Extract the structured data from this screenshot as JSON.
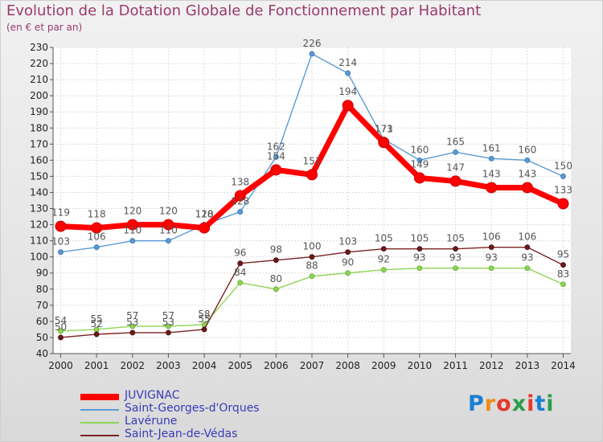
{
  "chart_data": {
    "type": "line",
    "title": "Evolution de la Dotation Globale de Fonctionnement par Habitant",
    "subtitle": "(en € et par an)",
    "xlabel": "",
    "ylabel": "",
    "x": [
      "2000",
      "2001",
      "2002",
      "2003",
      "2004",
      "2005",
      "2006",
      "2007",
      "2008",
      "2009",
      "2010",
      "2011",
      "2012",
      "2013",
      "2014"
    ],
    "ylim": [
      40,
      230
    ],
    "yticks": [
      40,
      50,
      60,
      70,
      80,
      90,
      100,
      110,
      120,
      130,
      140,
      150,
      160,
      170,
      180,
      190,
      200,
      210,
      220,
      230
    ],
    "grid": true,
    "legend_position": "bottom-left",
    "series": [
      {
        "name": "JUVIGNAC",
        "color": "#ff0000",
        "values": [
          119,
          118,
          120,
          120,
          118,
          138,
          154,
          151,
          194,
          171,
          149,
          147,
          143,
          143,
          133
        ],
        "labels": [
          "119",
          "118",
          "120",
          "120",
          "118",
          "138",
          "154",
          "151",
          "194",
          "171",
          "149",
          "147",
          "143",
          "143",
          "133"
        ]
      },
      {
        "name": "Saint-Georges-d'Orques",
        "color": "#5b9bd5",
        "values": [
          103,
          106,
          110,
          110,
          120,
          128,
          162,
          226,
          214,
          173,
          160,
          165,
          161,
          160,
          150
        ],
        "labels": [
          "103",
          "106",
          "110",
          "110",
          "120",
          "128",
          "162",
          "226",
          "214",
          "173",
          "160",
          "165",
          "161",
          "160",
          "150"
        ]
      },
      {
        "name": "Lavérune",
        "color": "#8ed454",
        "values": [
          54,
          55,
          57,
          57,
          58,
          84,
          80,
          88,
          90,
          92,
          93,
          93,
          93,
          93,
          83
        ],
        "labels": [
          "54",
          "55",
          "57",
          "57",
          "58",
          "84",
          "80",
          "88",
          "90",
          "92",
          "93",
          "93",
          "93",
          "93",
          "83"
        ]
      },
      {
        "name": "Saint-Jean-de-Védas",
        "color": "#6b1a1a",
        "values": [
          50,
          52,
          53,
          53,
          55,
          96,
          98,
          100,
          103,
          105,
          105,
          105,
          106,
          106,
          95
        ],
        "labels": [
          "50",
          "52",
          "53",
          "53",
          "55",
          "96",
          "98",
          "100",
          "103",
          "105",
          "105",
          "105",
          "106",
          "106",
          "95"
        ]
      }
    ]
  },
  "logo": {
    "text": "Proxiti",
    "letters": [
      "P",
      "r",
      "o",
      "x",
      "i",
      "t",
      "i"
    ],
    "colors": [
      "#1a7fd1",
      "#f08a1c",
      "#e6392c",
      "#2a9d4a",
      "#e6392c",
      "#1a7fd1",
      "#2a9d4a"
    ]
  }
}
